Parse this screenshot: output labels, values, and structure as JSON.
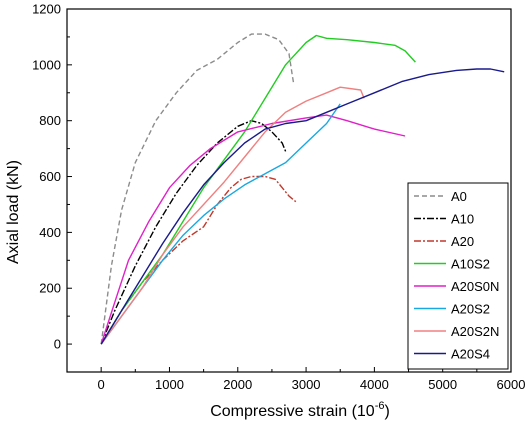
{
  "chart_data": {
    "type": "line",
    "xlabel": "Compressive strain (10",
    "xlabel_sup": "-6",
    "xlabel_end": ")",
    "ylabel": "Axial load (kN)",
    "xlim": [
      -500,
      6000
    ],
    "ylim": [
      -100,
      1200
    ],
    "xticks": [
      0,
      1000,
      2000,
      3000,
      4000,
      5000,
      6000
    ],
    "yticks": [
      0,
      200,
      400,
      600,
      800,
      1000,
      1200
    ],
    "legend_position": "bottom-right",
    "series": [
      {
        "name": "A0",
        "color": "#8c8c8c",
        "dash": "5,3",
        "points": [
          [
            0,
            0
          ],
          [
            150,
            280
          ],
          [
            300,
            480
          ],
          [
            500,
            650
          ],
          [
            800,
            800
          ],
          [
            1100,
            900
          ],
          [
            1400,
            980
          ],
          [
            1700,
            1020
          ],
          [
            2000,
            1080
          ],
          [
            2200,
            1110
          ],
          [
            2400,
            1110
          ],
          [
            2600,
            1090
          ],
          [
            2750,
            1040
          ],
          [
            2800,
            960
          ],
          [
            2820,
            930
          ]
        ]
      },
      {
        "name": "A10",
        "color": "#000000",
        "dash": "7,2,2,2",
        "points": [
          [
            0,
            0
          ],
          [
            200,
            120
          ],
          [
            500,
            280
          ],
          [
            800,
            420
          ],
          [
            1100,
            540
          ],
          [
            1400,
            640
          ],
          [
            1700,
            720
          ],
          [
            2000,
            780
          ],
          [
            2200,
            800
          ],
          [
            2350,
            790
          ],
          [
            2500,
            760
          ],
          [
            2650,
            720
          ],
          [
            2700,
            690
          ]
        ]
      },
      {
        "name": "A20",
        "color": "#c0392b",
        "dash": "7,2,2,2",
        "points": [
          [
            0,
            0
          ],
          [
            300,
            120
          ],
          [
            600,
            220
          ],
          [
            900,
            300
          ],
          [
            1200,
            370
          ],
          [
            1500,
            420
          ],
          [
            1700,
            500
          ],
          [
            1900,
            560
          ],
          [
            2050,
            590
          ],
          [
            2200,
            600
          ],
          [
            2400,
            600
          ],
          [
            2550,
            590
          ],
          [
            2650,
            560
          ],
          [
            2750,
            530
          ],
          [
            2850,
            510
          ]
        ]
      },
      {
        "name": "A10S2",
        "color": "#22cc22",
        "dash": "",
        "points": [
          [
            0,
            0
          ],
          [
            300,
            120
          ],
          [
            600,
            220
          ],
          [
            900,
            320
          ],
          [
            1200,
            440
          ],
          [
            1500,
            560
          ],
          [
            1800,
            660
          ],
          [
            2100,
            760
          ],
          [
            2400,
            880
          ],
          [
            2700,
            1000
          ],
          [
            3000,
            1080
          ],
          [
            3150,
            1105
          ],
          [
            3300,
            1095
          ],
          [
            3600,
            1090
          ],
          [
            4000,
            1080
          ],
          [
            4300,
            1070
          ],
          [
            4450,
            1050
          ],
          [
            4600,
            1010
          ]
        ]
      },
      {
        "name": "A20S0N",
        "color": "#e020c8",
        "dash": "",
        "points": [
          [
            0,
            0
          ],
          [
            200,
            150
          ],
          [
            400,
            300
          ],
          [
            700,
            440
          ],
          [
            1000,
            560
          ],
          [
            1300,
            640
          ],
          [
            1600,
            700
          ],
          [
            2000,
            760
          ],
          [
            2500,
            790
          ],
          [
            3000,
            810
          ],
          [
            3300,
            820
          ],
          [
            3600,
            800
          ],
          [
            4000,
            770
          ],
          [
            4450,
            745
          ]
        ]
      },
      {
        "name": "A20S2",
        "color": "#1aa8e0",
        "dash": "",
        "points": [
          [
            0,
            0
          ],
          [
            300,
            100
          ],
          [
            600,
            200
          ],
          [
            900,
            300
          ],
          [
            1200,
            390
          ],
          [
            1500,
            460
          ],
          [
            1800,
            520
          ],
          [
            2100,
            570
          ],
          [
            2400,
            610
          ],
          [
            2700,
            650
          ],
          [
            3000,
            720
          ],
          [
            3300,
            790
          ],
          [
            3500,
            860
          ]
        ]
      },
      {
        "name": "A20S2N",
        "color": "#f08080",
        "dash": "",
        "points": [
          [
            0,
            0
          ],
          [
            300,
            100
          ],
          [
            600,
            200
          ],
          [
            900,
            320
          ],
          [
            1200,
            420
          ],
          [
            1500,
            500
          ],
          [
            1800,
            580
          ],
          [
            2100,
            670
          ],
          [
            2400,
            760
          ],
          [
            2700,
            830
          ],
          [
            3000,
            870
          ],
          [
            3300,
            900
          ],
          [
            3500,
            920
          ],
          [
            3800,
            910
          ],
          [
            3850,
            880
          ]
        ]
      },
      {
        "name": "A20S4",
        "color": "#1a1a8c",
        "dash": "",
        "points": [
          [
            0,
            0
          ],
          [
            300,
            120
          ],
          [
            600,
            240
          ],
          [
            900,
            360
          ],
          [
            1200,
            470
          ],
          [
            1500,
            570
          ],
          [
            1800,
            650
          ],
          [
            2100,
            720
          ],
          [
            2400,
            770
          ],
          [
            2700,
            790
          ],
          [
            3000,
            800
          ],
          [
            3300,
            830
          ],
          [
            3600,
            860
          ],
          [
            4000,
            900
          ],
          [
            4400,
            940
          ],
          [
            4800,
            965
          ],
          [
            5200,
            980
          ],
          [
            5500,
            985
          ],
          [
            5700,
            985
          ],
          [
            5900,
            975
          ]
        ]
      }
    ]
  }
}
